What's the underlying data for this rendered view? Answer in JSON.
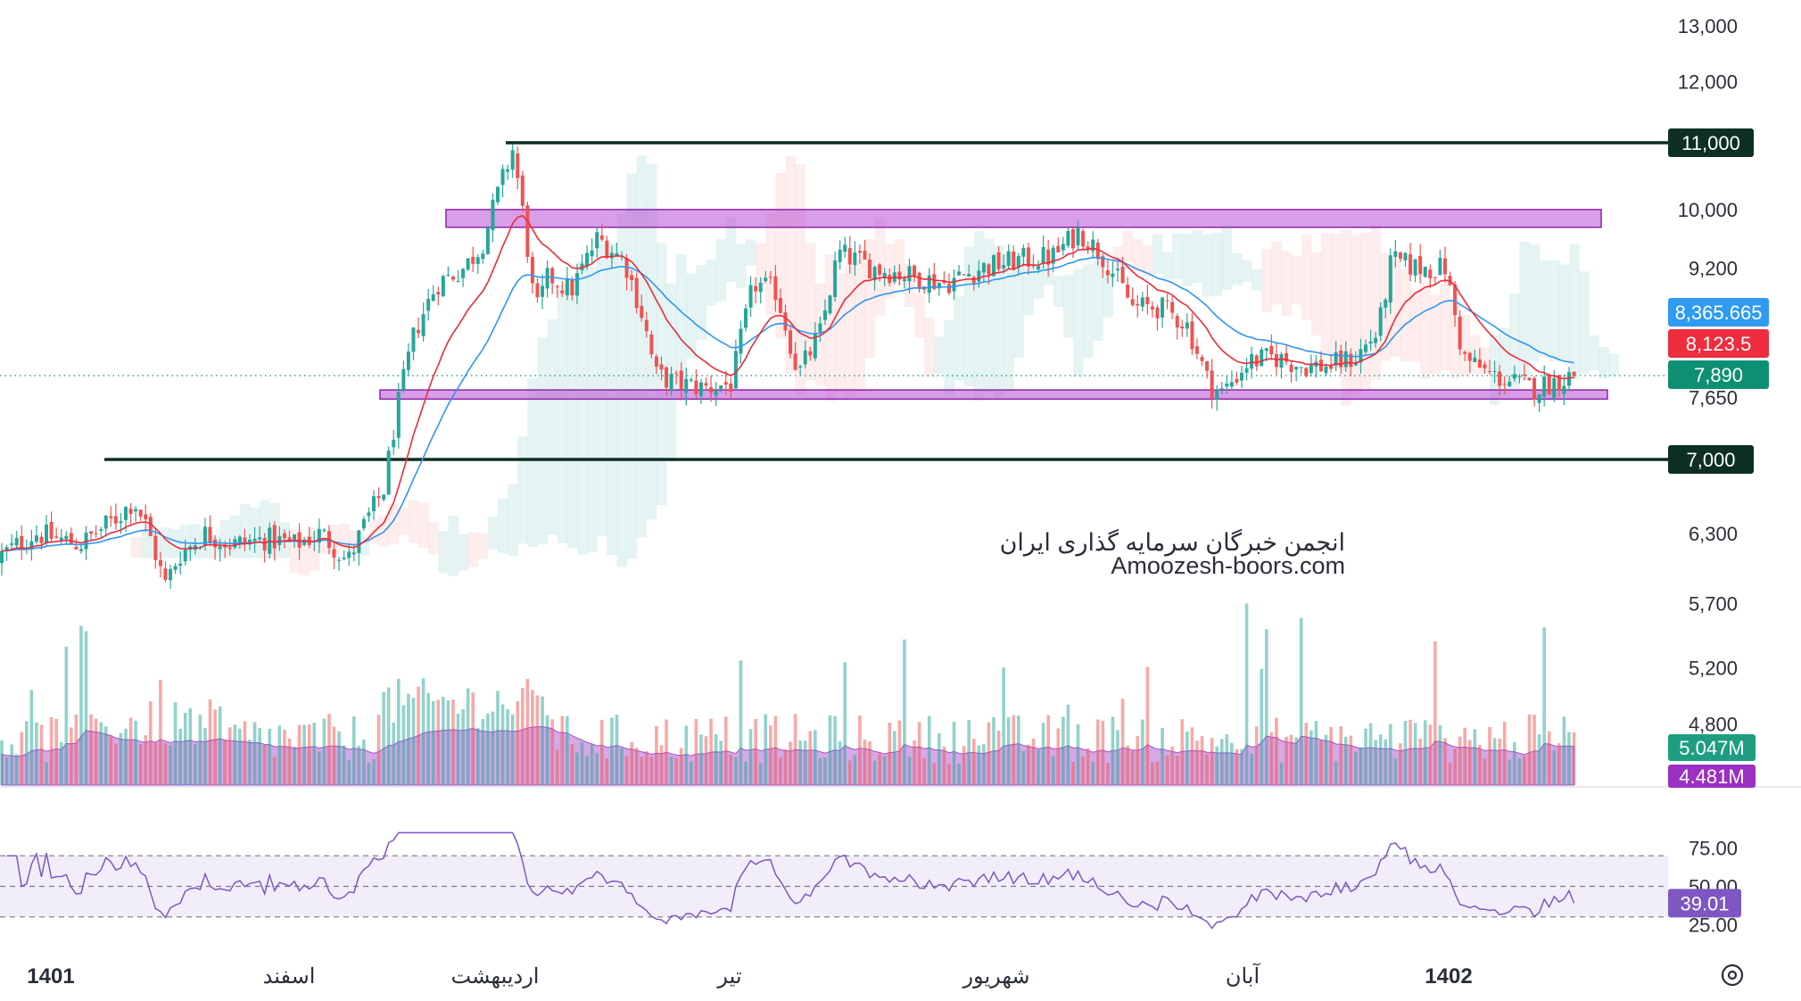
{
  "chart_data": {
    "type": "candlestick",
    "y_scale": "log",
    "price_ticks": [
      "13,000",
      "12,000",
      "11,000",
      "10,000",
      "9,200",
      "7,650",
      "7,000",
      "6,300",
      "5,700",
      "5,200",
      "4,800"
    ],
    "x_ticks": [
      "1401",
      "اسفند",
      "اردیبهشت",
      "تیر",
      "شهریور",
      "آبان",
      "1402"
    ],
    "horizontal_lines": [
      {
        "price": 11000,
        "label": "11,000",
        "color": "#0d2f25"
      },
      {
        "price": 7000,
        "label": "7,000",
        "color": "#0d2f25"
      }
    ],
    "zones": [
      {
        "top": 10000,
        "bottom": 9750,
        "color": "#b84fd4"
      },
      {
        "top": 7730,
        "bottom": 7630,
        "color": "#b84fd4"
      }
    ],
    "price_badges": [
      {
        "label": "8,365.665",
        "price": 8365.665,
        "color": "#2f9bf0"
      },
      {
        "label": "8,123.5",
        "price": 8123.5,
        "color": "#ee2d3f"
      },
      {
        "label": "7,890",
        "price": 7890,
        "color": "#0f8f72"
      }
    ],
    "last_price": 7890,
    "overlays": [
      {
        "name": "ema-blue",
        "color": "#2f96f0"
      },
      {
        "name": "ema-red",
        "color": "#ee2a3c"
      }
    ],
    "volume_badges": [
      {
        "label": "5.047M",
        "color": "#1f9d80"
      },
      {
        "label": "4.481M",
        "color": "#9c2fc4"
      }
    ],
    "rsi": {
      "ticks": [
        "75.00",
        "50.00",
        "25.00"
      ],
      "upper": 70,
      "lower": 30,
      "value": "39.01",
      "color": "#7e57c2"
    },
    "watermark": {
      "line1": "انجمن خبرگان سرمایه گذاری ایران",
      "line2": "Amoozesh-boors.com"
    },
    "up_color": "#26a69a",
    "down_color": "#ef5350"
  }
}
